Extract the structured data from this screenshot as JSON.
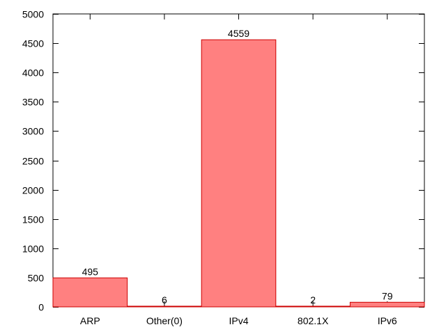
{
  "chart_data": {
    "type": "bar",
    "categories": [
      "ARP",
      "Other(0)",
      "IPv4",
      "802.1X",
      "IPv6"
    ],
    "values": [
      495,
      6,
      4559,
      2,
      79
    ],
    "data_labels": [
      "495",
      "6",
      "4559",
      "2",
      "79"
    ],
    "title": "",
    "xlabel": "",
    "ylabel": "",
    "ylim": [
      0,
      5000
    ],
    "yticks": [
      0,
      500,
      1000,
      1500,
      2000,
      2500,
      3000,
      3500,
      4000,
      4500,
      5000
    ],
    "grid": false,
    "legend": "none",
    "colors": {
      "bar_fill": "#ff8080",
      "bar_stroke": "#cc0000",
      "axis": "#000000"
    }
  }
}
